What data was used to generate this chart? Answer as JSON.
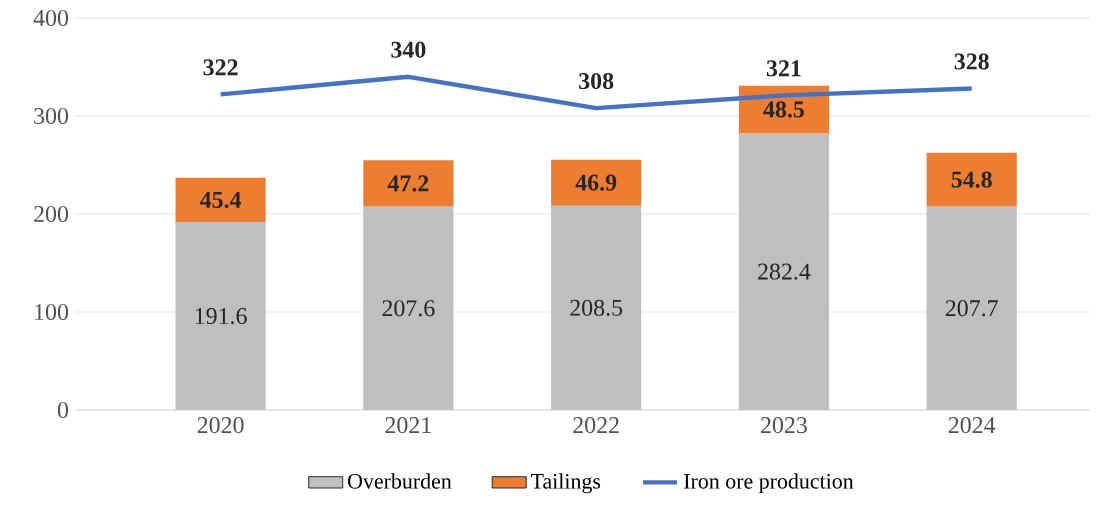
{
  "chart_data": {
    "type": "bar",
    "stacked": true,
    "categories": [
      "2020",
      "2021",
      "2022",
      "2023",
      "2024"
    ],
    "series": [
      {
        "name": "Overburden",
        "color": "#bfbfbf",
        "values": [
          191.6,
          207.6,
          208.5,
          282.4,
          207.7
        ]
      },
      {
        "name": "Tailings",
        "color": "#ed7d31",
        "values": [
          45.4,
          47.2,
          46.9,
          48.5,
          54.8
        ]
      },
      {
        "name": "Iron ore production",
        "type": "line",
        "color": "#4472c4",
        "values": [
          322,
          340,
          308,
          321,
          328
        ]
      }
    ],
    "ylim": [
      0,
      400
    ],
    "yticks": [
      0,
      100,
      200,
      300,
      400
    ],
    "grid": "y",
    "legend": "bottom",
    "data_labels": true
  }
}
